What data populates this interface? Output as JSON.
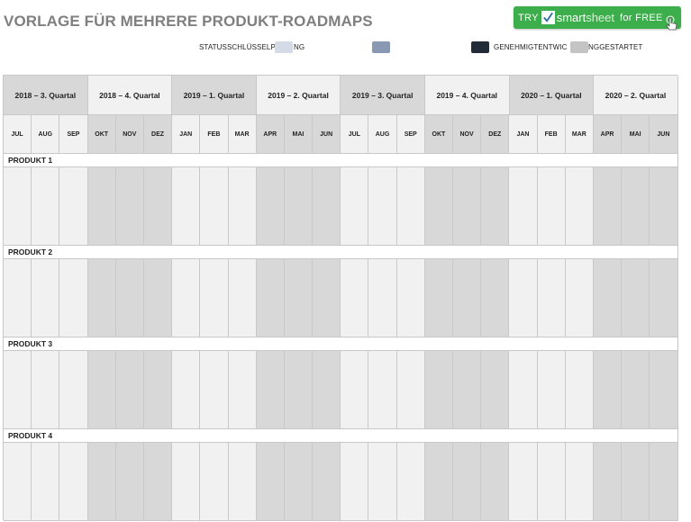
{
  "title": "VORLAGE FÜR MEHRERE PRODUKT-ROADMAPS",
  "cta": {
    "try": "TRY",
    "brand_a": "smart",
    "brand_b": "sheet",
    "free": "for FREE"
  },
  "legend": {
    "label_main": "STATUSSCHLÜSSELPL",
    "label_mid_tail": "NG",
    "label_right": "GENEHMIGTENTWIC",
    "label_right_tail": "NGGESTARTET",
    "colors": [
      "#d5dbe6",
      "#8998b3",
      "#222b38",
      "#c4c4c4"
    ]
  },
  "quarters": [
    "2018 – 3. Quartal",
    "2018 – 4. Quartal",
    "2019 – 1. Quartal",
    "2019 – 2. Quartal",
    "2019 – 3. Quartal",
    "2019 – 4. Quartal",
    "2020 – 1. Quartal",
    "2020 – 2. Quartal"
  ],
  "months": [
    "JUL",
    "AUG",
    "SEP",
    "OKT",
    "NOV",
    "DEZ",
    "JAN",
    "FEB",
    "MAR",
    "APR",
    "MAI",
    "JUN",
    "JUL",
    "AUG",
    "SEP",
    "OKT",
    "NOV",
    "DEZ",
    "JAN",
    "FEB",
    "MAR",
    "APR",
    "MAI",
    "JUN"
  ],
  "products": [
    "PRODUKT 1",
    "PRODUKT 2",
    "PRODUKT 3",
    "PRODUKT 4"
  ]
}
